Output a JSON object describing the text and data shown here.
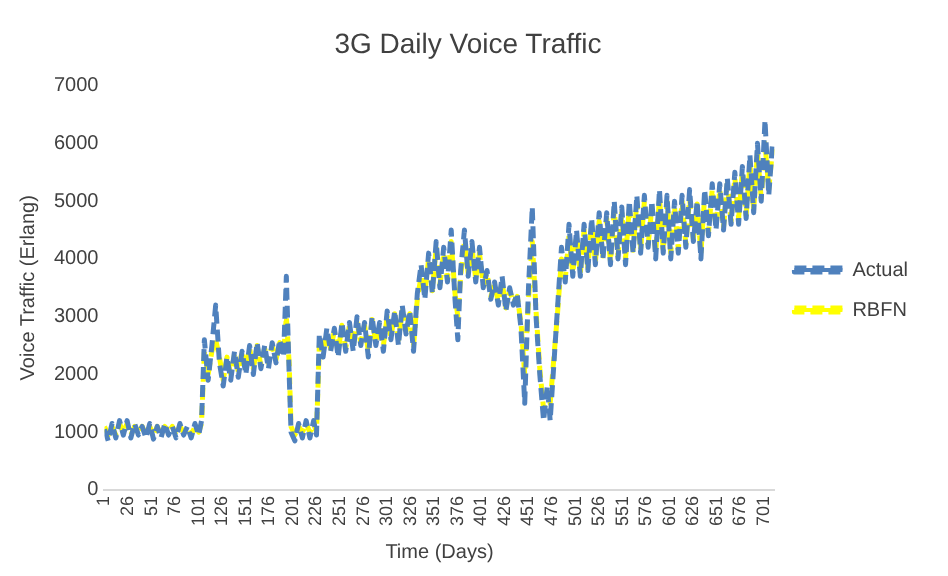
{
  "chart_data": {
    "type": "line",
    "title": "3G Daily Voice Traffic",
    "xlabel": "Time (Days)",
    "ylabel": "Voice Traffic (Erlang)",
    "x": [
      1,
      5,
      9,
      13,
      17,
      21,
      25,
      29,
      33,
      37,
      41,
      45,
      49,
      53,
      57,
      61,
      65,
      69,
      73,
      77,
      81,
      85,
      89,
      93,
      97,
      101,
      104,
      107,
      111,
      115,
      119,
      123,
      127,
      131,
      135,
      139,
      143,
      147,
      151,
      155,
      159,
      163,
      167,
      171,
      175,
      179,
      183,
      187,
      191,
      194,
      197,
      199,
      203,
      207,
      211,
      215,
      219,
      223,
      226,
      229,
      233,
      237,
      241,
      245,
      249,
      253,
      257,
      261,
      265,
      269,
      273,
      277,
      281,
      285,
      289,
      293,
      297,
      301,
      305,
      309,
      313,
      317,
      321,
      325,
      329,
      333,
      337,
      341,
      345,
      349,
      353,
      357,
      361,
      365,
      369,
      373,
      376,
      379,
      383,
      387,
      391,
      395,
      399,
      403,
      407,
      411,
      415,
      419,
      423,
      427,
      431,
      435,
      439,
      443,
      447,
      451,
      455,
      459,
      463,
      467,
      471,
      474,
      478,
      482,
      486,
      490,
      494,
      498,
      502,
      506,
      510,
      514,
      518,
      522,
      526,
      530,
      534,
      538,
      542,
      546,
      550,
      554,
      558,
      562,
      566,
      570,
      574,
      578,
      582,
      586,
      590,
      594,
      598,
      602,
      606,
      610,
      614,
      618,
      622,
      626,
      630,
      634,
      638,
      642,
      646,
      650,
      654,
      658,
      662,
      666,
      670,
      674,
      678,
      682,
      686,
      690,
      694,
      698,
      702,
      706,
      710
    ],
    "series": [
      {
        "name": "Actual",
        "color": "#4f81bd",
        "values": [
          1050,
          850,
          1150,
          900,
          1200,
          950,
          1200,
          900,
          1150,
          950,
          1100,
          900,
          1150,
          880,
          1100,
          900,
          1150,
          950,
          1100,
          900,
          1150,
          950,
          1100,
          900,
          1150,
          950,
          1200,
          2600,
          1900,
          2500,
          3200,
          2200,
          1800,
          2300,
          1900,
          2400,
          1950,
          2400,
          2000,
          2500,
          2000,
          2550,
          2100,
          2500,
          2100,
          2550,
          2200,
          2600,
          2300,
          3700,
          2000,
          1000,
          850,
          1150,
          900,
          1200,
          900,
          1200,
          950,
          2700,
          2300,
          2800,
          2400,
          2800,
          2300,
          2900,
          2400,
          2900,
          2400,
          3000,
          2500,
          2900,
          2300,
          3000,
          2500,
          2900,
          2400,
          3100,
          2600,
          3100,
          2500,
          3200,
          2700,
          3100,
          2400,
          3400,
          3900,
          3300,
          4100,
          3400,
          4300,
          3500,
          4200,
          3600,
          4500,
          3300,
          2600,
          3800,
          4500,
          3700,
          4300,
          3600,
          4200,
          3500,
          3800,
          3300,
          3600,
          3200,
          3700,
          3100,
          3500,
          3200,
          3400,
          2800,
          1500,
          3500,
          4900,
          3000,
          2000,
          1200,
          1800,
          1200,
          2200,
          3200,
          4200,
          3600,
          4600,
          3700,
          4500,
          3700,
          4600,
          3800,
          4700,
          3900,
          4800,
          4000,
          4800,
          3900,
          5000,
          4000,
          4900,
          3900,
          5000,
          4100,
          5100,
          4100,
          5100,
          4200,
          5000,
          4000,
          5200,
          4100,
          5100,
          4000,
          5000,
          4100,
          5100,
          4200,
          5200,
          4300,
          5000,
          4000,
          5200,
          4400,
          5300,
          4500,
          5300,
          4500,
          5400,
          4600,
          5500,
          4600,
          5600,
          4700,
          5800,
          4800,
          6000,
          5000,
          6400,
          5100,
          6000
        ]
      },
      {
        "name": "RBFN",
        "color": "#ffff00",
        "values": [
          1100,
          950,
          1100,
          950,
          1150,
          1000,
          1150,
          950,
          1100,
          1000,
          1100,
          950,
          1100,
          950,
          1100,
          950,
          1100,
          1000,
          1100,
          950,
          1100,
          1000,
          1050,
          950,
          1100,
          1000,
          1150,
          2400,
          2000,
          2400,
          2600,
          2300,
          1900,
          2300,
          2000,
          2350,
          2050,
          2400,
          2100,
          2450,
          2100,
          2500,
          2150,
          2450,
          2200,
          2500,
          2250,
          2550,
          2350,
          3000,
          2200,
          1100,
          950,
          1100,
          1000,
          1150,
          1000,
          1150,
          1000,
          2500,
          2400,
          2700,
          2450,
          2750,
          2400,
          2850,
          2450,
          2850,
          2500,
          2900,
          2550,
          2850,
          2400,
          2950,
          2550,
          2850,
          2500,
          3000,
          2650,
          3050,
          2600,
          3100,
          2750,
          3050,
          2500,
          3300,
          3700,
          3400,
          4000,
          3450,
          4200,
          3550,
          4100,
          3650,
          4300,
          3400,
          3000,
          3700,
          4300,
          3750,
          4200,
          3650,
          4100,
          3550,
          3750,
          3350,
          3550,
          3250,
          3600,
          3150,
          3450,
          3250,
          3350,
          2900,
          2000,
          3300,
          4300,
          3100,
          2100,
          1400,
          1700,
          1500,
          2300,
          3100,
          4000,
          3650,
          4400,
          3750,
          4400,
          3750,
          4500,
          3850,
          4600,
          3950,
          4650,
          4050,
          4700,
          3950,
          4850,
          4050,
          4800,
          4000,
          4900,
          4150,
          5000,
          4150,
          5000,
          4250,
          4900,
          4100,
          5050,
          4150,
          5000,
          4100,
          4900,
          4150,
          5000,
          4250,
          5050,
          4350,
          4950,
          4100,
          5100,
          4450,
          5200,
          4550,
          5200,
          4550,
          5300,
          4650,
          5400,
          4700,
          5500,
          4750,
          5650,
          4850,
          5850,
          5050,
          6000,
          5200,
          5900
        ]
      }
    ],
    "xlim": [
      1,
      712
    ],
    "xticks": [
      1,
      26,
      51,
      76,
      101,
      126,
      151,
      176,
      201,
      226,
      251,
      276,
      301,
      326,
      351,
      376,
      401,
      426,
      451,
      476,
      501,
      526,
      551,
      576,
      601,
      626,
      651,
      676,
      701
    ],
    "ylim": [
      0,
      7000
    ],
    "yticks": [
      0,
      1000,
      2000,
      3000,
      4000,
      5000,
      6000,
      7000
    ],
    "grid": false,
    "legend": "right",
    "marker": "none",
    "line_style": "dashed"
  }
}
